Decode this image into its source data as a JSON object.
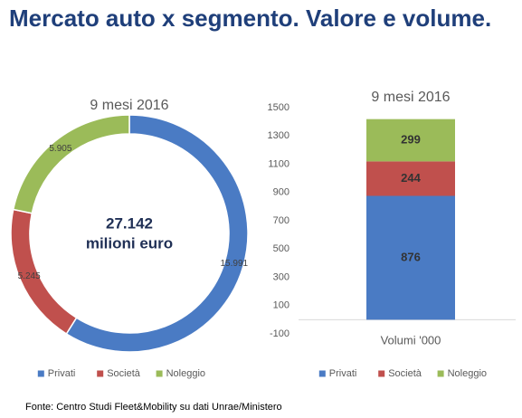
{
  "title": "Mercato auto x segmento. Valore e volume.",
  "source": "Fonte: Centro Studi Fleet&Mobility su dati Unrae/Ministero",
  "chart_data": [
    {
      "type": "pie",
      "donut": true,
      "title": "9 mesi 2016",
      "categories": [
        "Privati",
        "Società",
        "Noleggio"
      ],
      "values": [
        15991,
        5245,
        5905
      ],
      "value_labels": [
        "15.991",
        "5.245",
        "5.905"
      ],
      "colors": [
        "#4a7bc4",
        "#c0504d",
        "#9bbb59"
      ],
      "annotations": [
        "27.142",
        "milioni euro"
      ],
      "legend": "bottom"
    },
    {
      "type": "bar",
      "stacked": true,
      "title": "9 mesi 2016",
      "categories": [
        "Volumi '000"
      ],
      "series": [
        {
          "name": "Privati",
          "color": "#4a7bc4",
          "values": [
            876
          ]
        },
        {
          "name": "Società",
          "color": "#c0504d",
          "values": [
            244
          ]
        },
        {
          "name": "Noleggio",
          "color": "#9bbb59",
          "values": [
            299
          ]
        }
      ],
      "ylim": [
        -100,
        1500
      ],
      "yticks": [
        -100,
        100,
        300,
        500,
        700,
        900,
        1100,
        1300,
        1500
      ],
      "grid": false,
      "legend": "bottom"
    }
  ]
}
